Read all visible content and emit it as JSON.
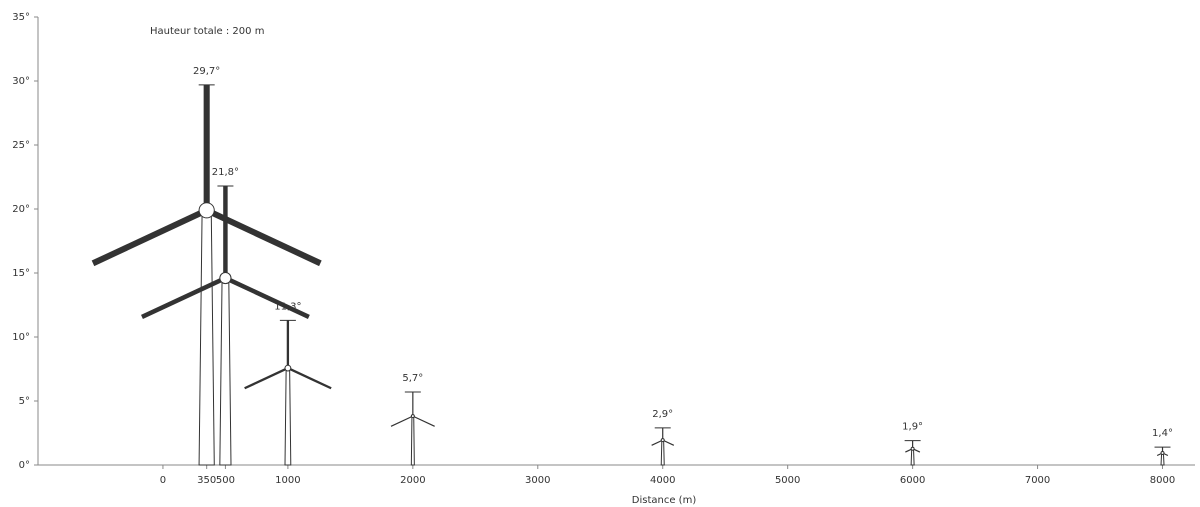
{
  "chart_data": {
    "type": "turbine",
    "title": "Hauteur totale : 200 m",
    "xlabel": "Distance (m)",
    "x": [
      350,
      500,
      1000,
      2000,
      4000,
      6000,
      8000
    ],
    "values": [
      29.7,
      21.8,
      11.3,
      5.7,
      2.9,
      1.9,
      1.4
    ],
    "value_labels": [
      "29,7°",
      "21,8°",
      "11,3°",
      "5,7°",
      "2,9°",
      "1,9°",
      "1,4°"
    ],
    "color": "#333333",
    "xlim": [
      -1000,
      8260
    ],
    "xticks": [
      0,
      350,
      500,
      1000,
      2000,
      3000,
      4000,
      5000,
      6000,
      7000,
      8000
    ],
    "ylim": [
      0,
      35
    ],
    "yticks": [
      {
        "value": 0,
        "label": "0°"
      },
      {
        "value": 5,
        "label": "5°"
      },
      {
        "value": 10,
        "label": "10°"
      },
      {
        "value": 15,
        "label": "15°"
      },
      {
        "value": 20,
        "label": "20°"
      },
      {
        "value": 25,
        "label": "25°"
      },
      {
        "value": 30,
        "label": "30°"
      },
      {
        "value": 35,
        "label": "35°"
      }
    ]
  }
}
